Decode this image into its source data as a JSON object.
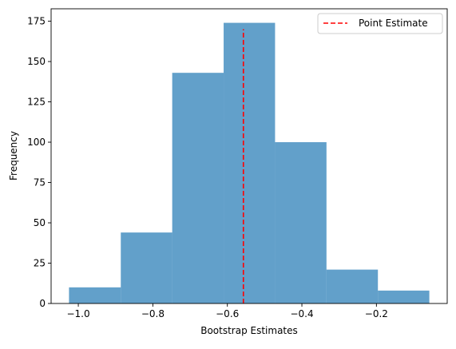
{
  "chart_data": {
    "type": "bar",
    "subtype": "histogram",
    "bins": [
      {
        "start": -1.025,
        "end": -0.886,
        "count": 10
      },
      {
        "start": -0.886,
        "end": -0.748,
        "count": 44
      },
      {
        "start": -0.748,
        "end": -0.61,
        "count": 143
      },
      {
        "start": -0.61,
        "end": -0.472,
        "count": 174
      },
      {
        "start": -0.472,
        "end": -0.334,
        "count": 100
      },
      {
        "start": -0.334,
        "end": -0.196,
        "count": 21
      },
      {
        "start": -0.196,
        "end": -0.058,
        "count": 8
      }
    ],
    "bar_color": "#1f77b4",
    "bar_alpha": 0.7,
    "reference_line": {
      "label": "Point Estimate",
      "x": -0.557,
      "y_range": [
        0,
        170
      ],
      "color": "#ff0000",
      "style": "dashed"
    },
    "title": "",
    "xlabel": "Bootstrap Estimates",
    "ylabel": "Frequency",
    "xlim": [
      -1.073,
      -0.01
    ],
    "ylim": [
      0,
      182.7
    ],
    "xticks": [
      -1.0,
      -0.8,
      -0.6,
      -0.4,
      -0.2
    ],
    "xtick_labels": [
      "−1.0",
      "−0.8",
      "−0.6",
      "−0.4",
      "−0.2"
    ],
    "yticks": [
      0,
      25,
      50,
      75,
      100,
      125,
      150,
      175
    ],
    "ytick_labels": [
      "0",
      "25",
      "50",
      "75",
      "100",
      "125",
      "150",
      "175"
    ],
    "grid": false,
    "legend": {
      "position": "upper-right",
      "entries": [
        "Point Estimate"
      ]
    }
  }
}
